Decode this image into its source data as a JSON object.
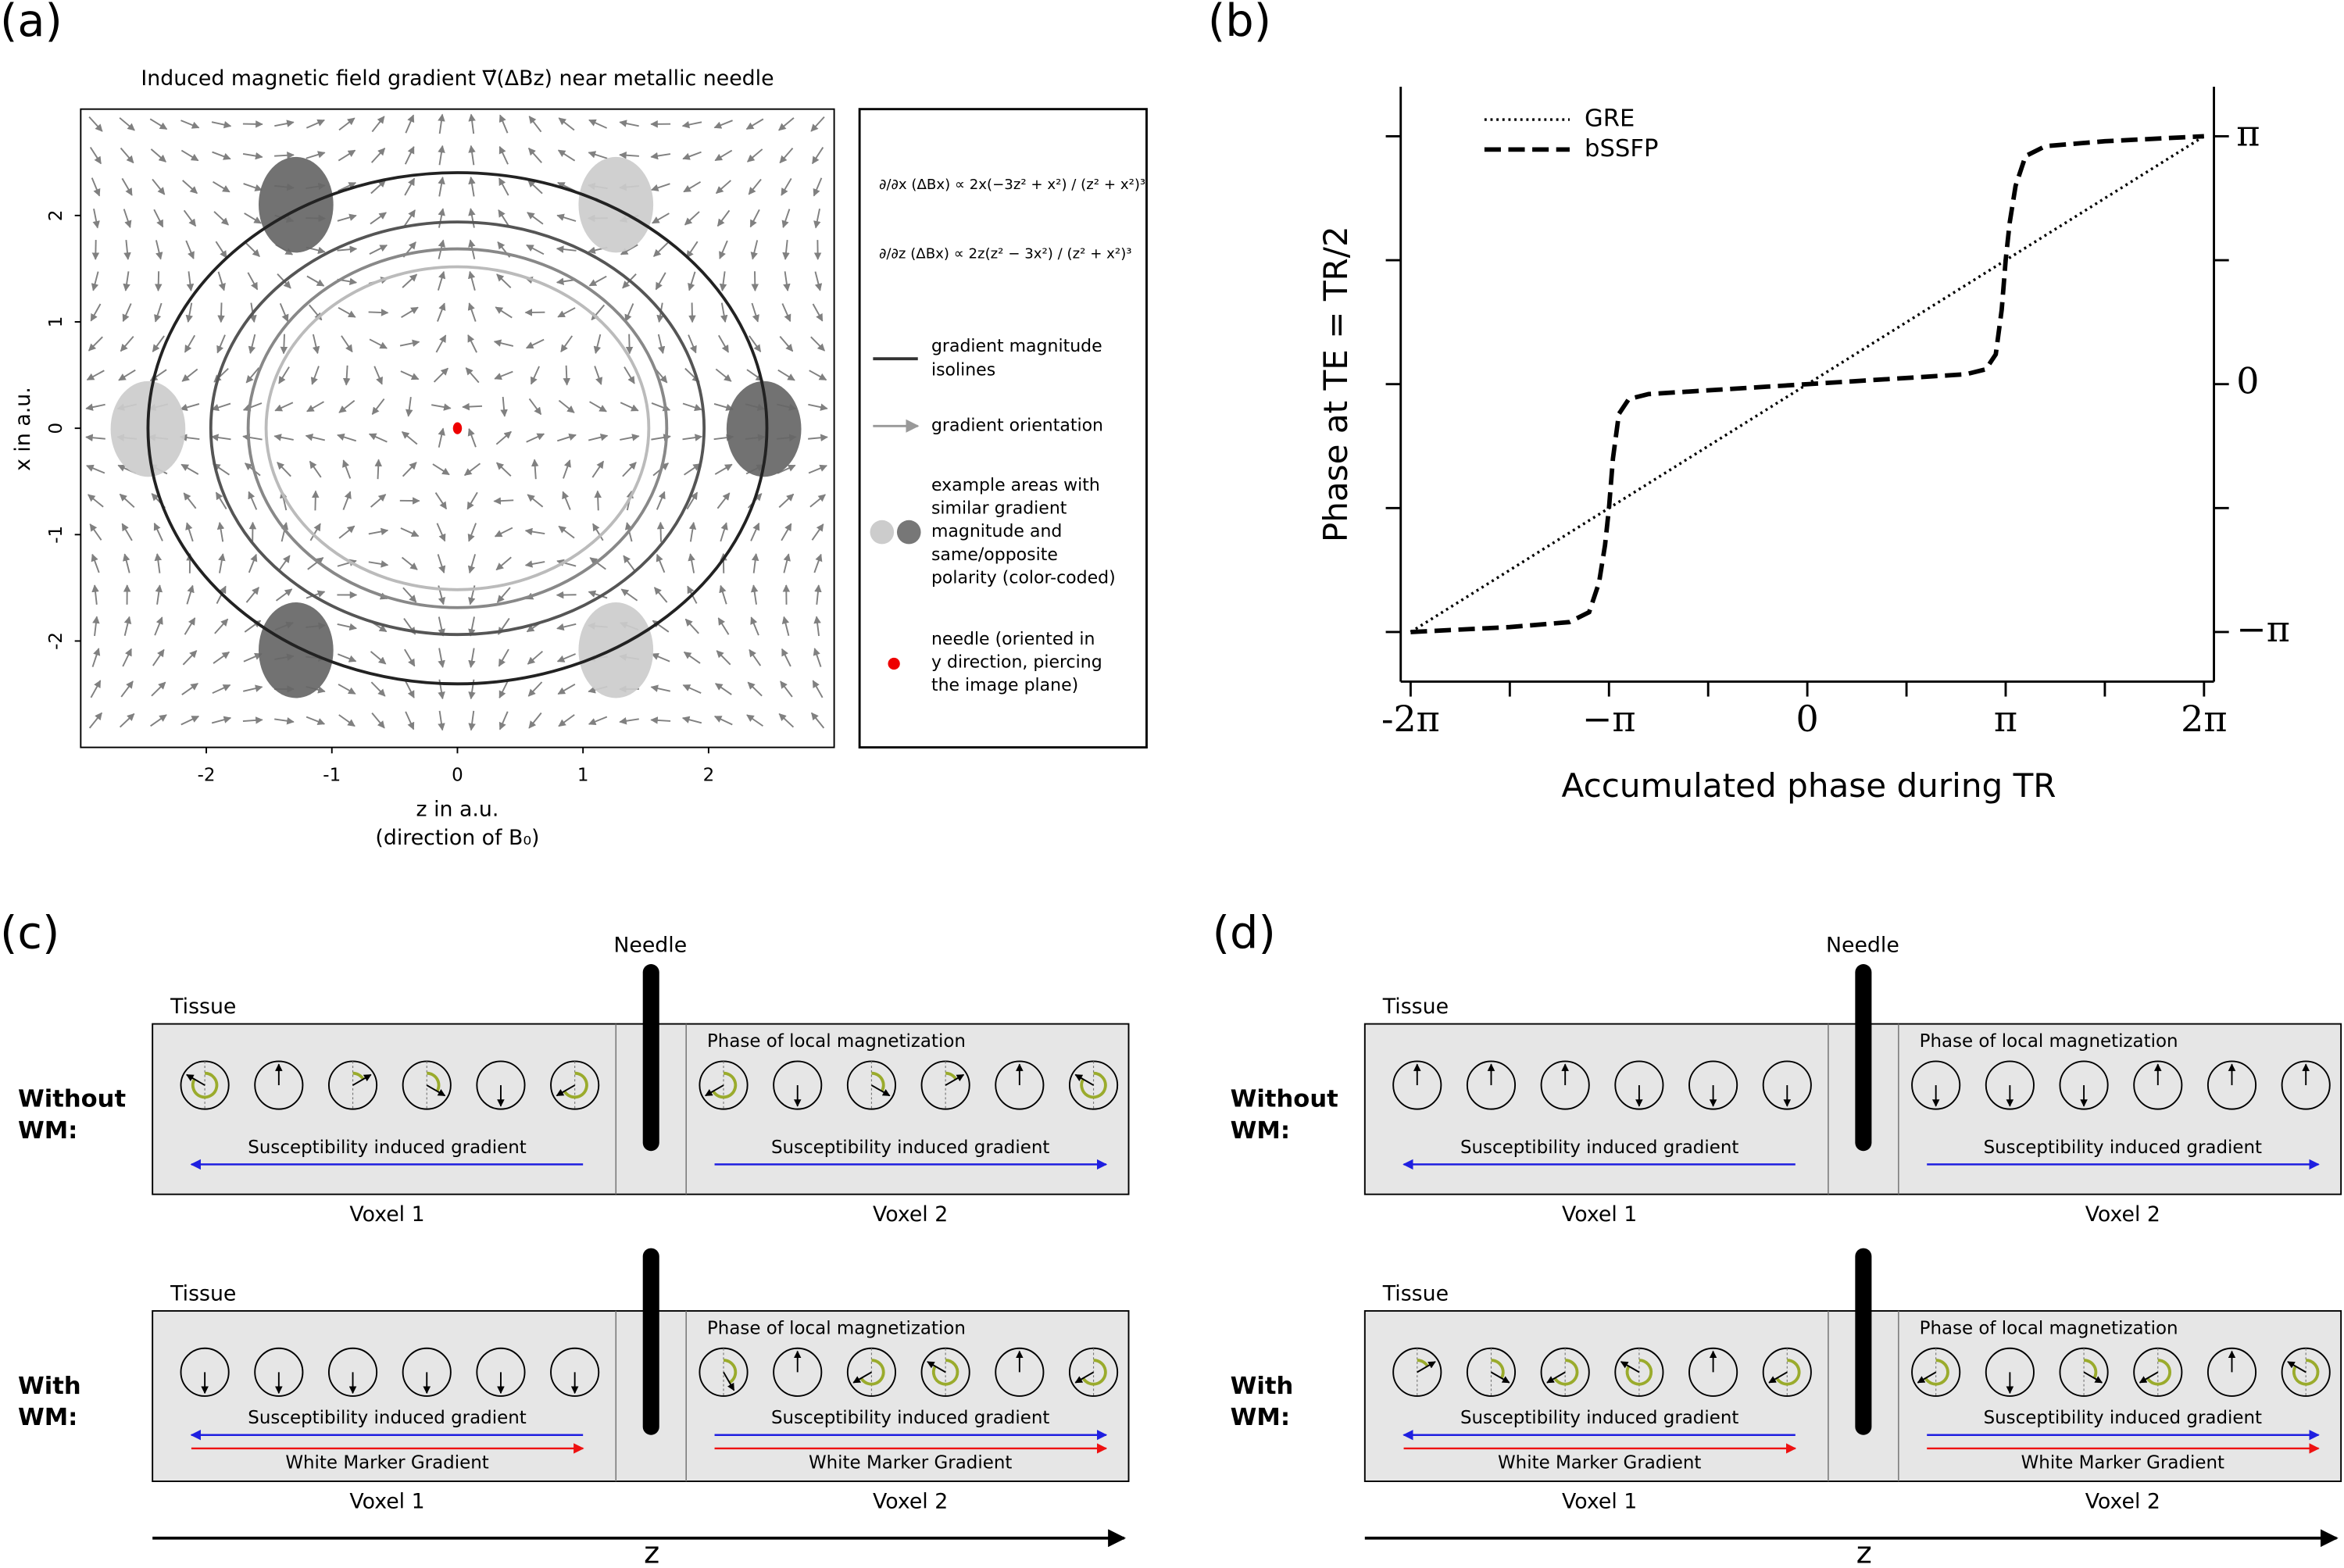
{
  "panel_a": {
    "label": "(a)",
    "title": "Induced magnetic field gradient ∇⃗(ΔBz) near metallic needle",
    "x_label": "z in a.u.",
    "x_sublabel": "(direction of B₀)",
    "y_label": "x in a.u.",
    "xlim": [
      -3,
      3
    ],
    "ylim": [
      -3,
      3
    ],
    "xticks": [
      -2,
      -1,
      0,
      1,
      2
    ],
    "yticks": [
      -2,
      -1,
      0,
      1,
      2
    ],
    "equations": [
      "∂/∂x (ΔBx) ∝ 2x(−3z² + x²) / (z² + x²)³",
      "∂/∂z (ΔBx) ∝ 2z(z² − 3x²) / (z² + x²)³"
    ],
    "legend": {
      "isolines": [
        "gradient magnitude",
        "isolines"
      ],
      "orientation": [
        "gradient orientation"
      ],
      "areas": [
        "example areas with",
        "similar gradient",
        "magnitude and",
        "same/opposite",
        "polarity (color-coded)"
      ],
      "needle": [
        "needle (oriented in",
        "y direction, piercing",
        "the image plane)"
      ]
    }
  },
  "chart_data": {
    "type": "line",
    "label": "(b)",
    "x_label": "Accumulated phase during TR",
    "y_label": "Phase at TE = TR/2",
    "x": [
      -2,
      -1.5,
      -1.2,
      -1.1,
      -1.05,
      -1.02,
      -1,
      -0.98,
      -0.95,
      -0.9,
      -0.8,
      0,
      0.8,
      0.9,
      0.95,
      0.98,
      1,
      1.02,
      1.05,
      1.1,
      1.2,
      1.5,
      2
    ],
    "series": [
      {
        "name": "GRE",
        "color": "#000000",
        "style": "dotted",
        "values": [
          -1,
          -0.75,
          -0.6,
          -0.55,
          -0.525,
          -0.51,
          -0.5,
          -0.49,
          -0.475,
          -0.45,
          -0.4,
          0,
          0.4,
          0.45,
          0.475,
          0.49,
          0.5,
          0.51,
          0.525,
          0.55,
          0.6,
          0.75,
          1
        ]
      },
      {
        "name": "bSSFP",
        "color": "#000000",
        "style": "dashed",
        "values": [
          -1,
          -0.98,
          -0.96,
          -0.92,
          -0.8,
          -0.65,
          -0.5,
          -0.3,
          -0.12,
          -0.06,
          -0.04,
          0,
          0.04,
          0.06,
          0.12,
          0.3,
          0.5,
          0.65,
          0.8,
          0.92,
          0.96,
          0.98,
          1
        ]
      }
    ],
    "xlim": [
      -2.05,
      2.05
    ],
    "ylim": [
      -1.2,
      1.2
    ],
    "xticks": [
      {
        "value": -2,
        "label": "-2π"
      },
      {
        "value": -1,
        "label": "−π"
      },
      0,
      {
        "value": 1,
        "label": "π"
      },
      {
        "value": 2,
        "label": "2π"
      }
    ],
    "yticks": [
      {
        "value": -1,
        "label": "−π"
      },
      0,
      {
        "value": 1,
        "label": "π"
      }
    ],
    "legend": "upper left"
  },
  "panel_c": {
    "label": "(c)",
    "needle": "Needle",
    "axis": "z",
    "top": {
      "tissue": "Tissue",
      "row_label": [
        "Without",
        "WM:"
      ],
      "phase": "Phase of local magnetization",
      "gradient_1": "Susceptibility induced gradient",
      "gradient_2": "Susceptibility induced gradient",
      "voxel_1": "Voxel 1",
      "voxel_2": "Voxel 2"
    },
    "bottom": {
      "tissue": "Tissue",
      "row_label": [
        "With",
        "WM:"
      ],
      "phase": "Phase of local magnetization",
      "gradient_1": "Susceptibility induced gradient",
      "gradient_2": "Susceptibility induced gradient",
      "wm_1": "White Marker Gradient",
      "wm_2": "White Marker Gradient",
      "voxel_1": "Voxel 1",
      "voxel_2": "Voxel 2"
    }
  },
  "panel_d": {
    "label": "(d)",
    "needle": "Needle",
    "axis": "z",
    "top": {
      "tissue": "Tissue",
      "row_label": [
        "Without",
        "WM:"
      ],
      "phase": "Phase of local magnetization",
      "gradient_1": "Susceptibility induced gradient",
      "gradient_2": "Susceptibility induced gradient",
      "voxel_1": "Voxel 1",
      "voxel_2": "Voxel 2"
    },
    "bottom": {
      "tissue": "Tissue",
      "row_label": [
        "With",
        "WM:"
      ],
      "phase": "Phase of local magnetization",
      "gradient_1": "Susceptibility induced gradient",
      "gradient_2": "Susceptibility induced gradient",
      "wm_1": "White Marker Gradient",
      "wm_2": "White Marker Gradient",
      "voxel_1": "Voxel 1",
      "voxel_2": "Voxel 2"
    }
  }
}
